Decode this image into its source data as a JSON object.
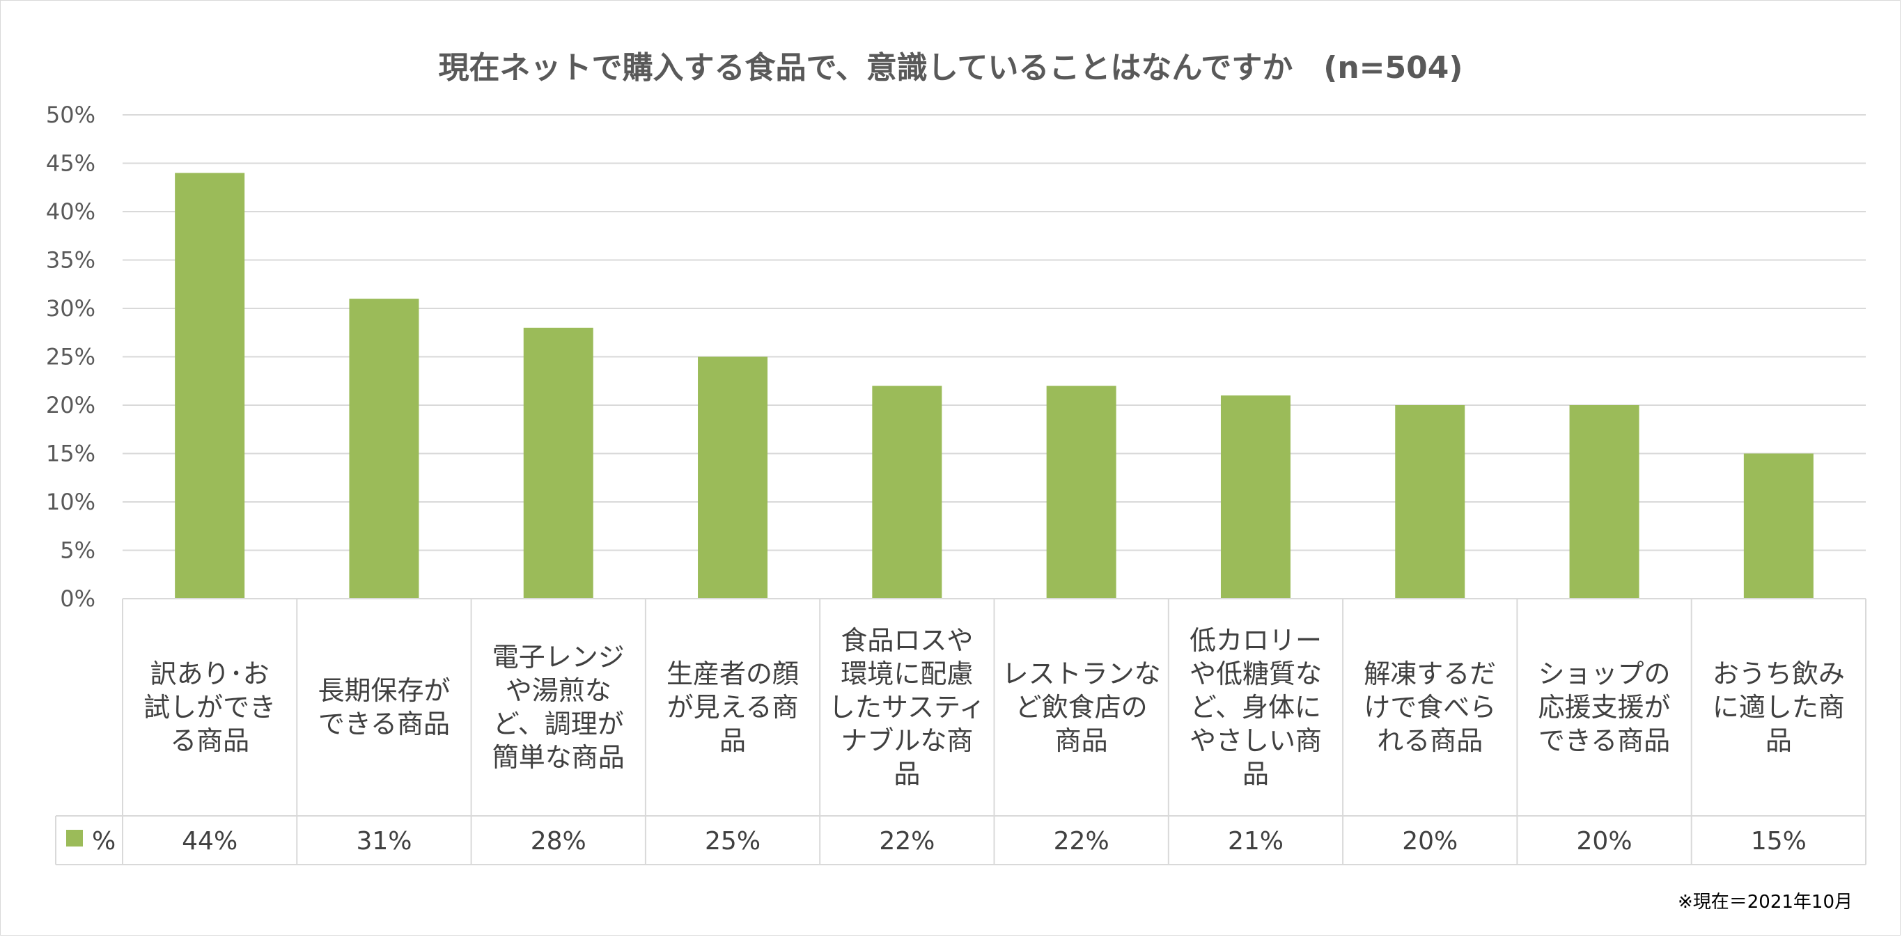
{
  "chart_data": {
    "type": "bar",
    "title": "現在ネットで購入する食品で、意識していることはなんですか　(n=504)",
    "series": [
      {
        "name": "%",
        "color": "#9bbb59",
        "values": [
          44,
          31,
          28,
          25,
          22,
          22,
          21,
          20,
          20,
          15
        ]
      }
    ],
    "categories": [
      [
        "訳あり･お",
        "試しができ",
        "る商品"
      ],
      [
        "長期保存が",
        "できる商品"
      ],
      [
        "電子レンジ",
        "や湯煎な",
        "ど、調理が",
        "簡単な商品"
      ],
      [
        "生産者の顔",
        "が見える商",
        "品"
      ],
      [
        "食品ロスや",
        "環境に配慮",
        "したサスティ",
        "ナブルな商",
        "品"
      ],
      [
        "レストランな",
        "ど飲食店の",
        "商品"
      ],
      [
        "低カロリー",
        "や低糖質な",
        "ど、身体に",
        "やさしい商",
        "品"
      ],
      [
        "解凍するだ",
        "けで食べら",
        "れる商品"
      ],
      [
        "ショップの",
        "応援支援が",
        "できる商品"
      ],
      [
        "おうち飲み",
        "に適した商",
        "品"
      ]
    ],
    "value_labels": [
      "44%",
      "31%",
      "28%",
      "25%",
      "22%",
      "22%",
      "21%",
      "20%",
      "20%",
      "15%"
    ],
    "ylim": [
      0,
      50
    ],
    "yticks": [
      "0%",
      "5%",
      "10%",
      "15%",
      "20%",
      "25%",
      "30%",
      "35%",
      "40%",
      "45%",
      "50%"
    ],
    "grid": true,
    "legend": "data table",
    "note": "※現在＝2021年10月"
  }
}
